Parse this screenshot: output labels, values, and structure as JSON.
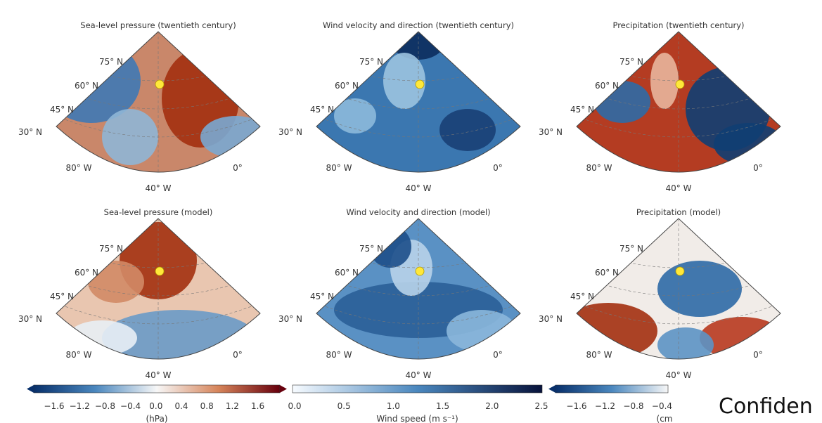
{
  "panels": [
    {
      "title": "Sea-level pressure (twentieth century)",
      "lat_labels": [
        "75° N",
        "60° N",
        "45° N",
        "30° N"
      ],
      "lon_labels": [
        "80° W",
        "40° W",
        "0°"
      ]
    },
    {
      "title": "Wind velocity and direction (twentieth century)",
      "lat_labels": [
        "75° N",
        "60° N",
        "45° N",
        "30° N"
      ],
      "lon_labels": [
        "80° W",
        "40° W",
        "0°"
      ]
    },
    {
      "title": "Precipitation (twentieth century)",
      "lat_labels": [
        "75° N",
        "60° N",
        "45° N",
        "30° N"
      ],
      "lon_labels": [
        "80° W",
        "40° W",
        "0°"
      ]
    },
    {
      "title": "Sea-level pressure (model)",
      "lat_labels": [
        "75° N",
        "60° N",
        "45° N",
        "30° N"
      ],
      "lon_labels": [
        "80° W",
        "40° W",
        "0°"
      ]
    },
    {
      "title": "Wind velocity and direction (model)",
      "lat_labels": [
        "75° N",
        "60° N",
        "45° N",
        "30° N"
      ],
      "lon_labels": [
        "80° W",
        "40° W",
        "0°"
      ]
    },
    {
      "title": "Precipitation (model)",
      "lat_labels": [
        "75° N",
        "60° N",
        "45° N",
        "30° N"
      ],
      "lon_labels": [
        "80° W",
        "40° W",
        "0°"
      ]
    }
  ],
  "colorbars": [
    {
      "ticks": [
        "−1.6",
        "−1.2",
        "−0.8",
        "−0.4",
        "0.0",
        "0.4",
        "0.8",
        "1.2",
        "1.6"
      ],
      "unit": "(hPa)"
    },
    {
      "ticks": [
        "0.0",
        "0.5",
        "1.0",
        "1.5",
        "2.0",
        "2.5"
      ],
      "unit": "Wind speed (m s⁻¹)"
    },
    {
      "ticks": [
        "−1.6",
        "−1.2",
        "−0.8",
        "−0.4"
      ],
      "unit": "(cm"
    }
  ],
  "overlay_text": "Confiden"
}
